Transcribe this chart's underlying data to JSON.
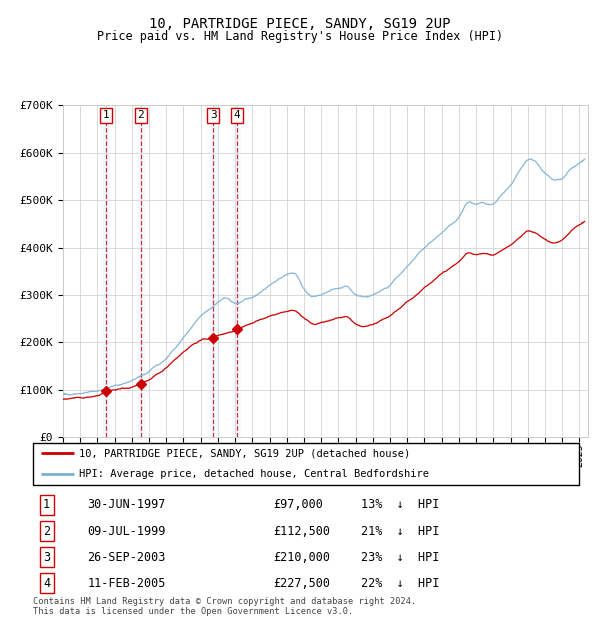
{
  "title": "10, PARTRIDGE PIECE, SANDY, SG19 2UP",
  "subtitle": "Price paid vs. HM Land Registry's House Price Index (HPI)",
  "legend_red": "10, PARTRIDGE PIECE, SANDY, SG19 2UP (detached house)",
  "legend_blue": "HPI: Average price, detached house, Central Bedfordshire",
  "footer": "Contains HM Land Registry data © Crown copyright and database right 2024.\nThis data is licensed under the Open Government Licence v3.0.",
  "transactions": [
    {
      "num": 1,
      "date": "30-JUN-1997",
      "price": 97000,
      "pct": "13%",
      "year": 1997.49
    },
    {
      "num": 2,
      "date": "09-JUL-1999",
      "price": 112500,
      "pct": "21%",
      "year": 1999.52
    },
    {
      "num": 3,
      "date": "26-SEP-2003",
      "price": 210000,
      "pct": "23%",
      "year": 2003.73
    },
    {
      "num": 4,
      "date": "11-FEB-2005",
      "price": 227500,
      "pct": "22%",
      "year": 2005.12
    }
  ],
  "ylim": [
    0,
    700000
  ],
  "yticks": [
    0,
    100000,
    200000,
    300000,
    400000,
    500000,
    600000,
    700000
  ],
  "ytick_labels": [
    "£0",
    "£100K",
    "£200K",
    "£300K",
    "£400K",
    "£500K",
    "£600K",
    "£700K"
  ],
  "xlim_start": 1995.0,
  "xlim_end": 2025.5,
  "red_color": "#cc0000",
  "blue_color": "#7bafd4",
  "highlight_color": "#ddeeff",
  "grid_color": "#cccccc",
  "background_color": "#ffffff",
  "hpi_keypoints": [
    [
      1995.0,
      90000
    ],
    [
      1996.0,
      93000
    ],
    [
      1997.0,
      97000
    ],
    [
      1998.0,
      108000
    ],
    [
      1999.0,
      118000
    ],
    [
      2000.0,
      138000
    ],
    [
      2001.0,
      165000
    ],
    [
      2002.0,
      210000
    ],
    [
      2003.0,
      255000
    ],
    [
      2004.0,
      285000
    ],
    [
      2004.5,
      295000
    ],
    [
      2005.0,
      280000
    ],
    [
      2006.0,
      295000
    ],
    [
      2007.0,
      320000
    ],
    [
      2008.0,
      345000
    ],
    [
      2008.5,
      350000
    ],
    [
      2009.0,
      310000
    ],
    [
      2009.5,
      295000
    ],
    [
      2010.0,
      300000
    ],
    [
      2011.0,
      315000
    ],
    [
      2011.5,
      320000
    ],
    [
      2012.0,
      300000
    ],
    [
      2012.5,
      295000
    ],
    [
      2013.0,
      300000
    ],
    [
      2014.0,
      320000
    ],
    [
      2015.0,
      360000
    ],
    [
      2016.0,
      400000
    ],
    [
      2017.0,
      430000
    ],
    [
      2018.0,
      460000
    ],
    [
      2018.5,
      500000
    ],
    [
      2019.0,
      490000
    ],
    [
      2019.5,
      495000
    ],
    [
      2020.0,
      490000
    ],
    [
      2021.0,
      530000
    ],
    [
      2021.5,
      560000
    ],
    [
      2022.0,
      590000
    ],
    [
      2022.5,
      580000
    ],
    [
      2023.0,
      555000
    ],
    [
      2023.5,
      540000
    ],
    [
      2024.0,
      545000
    ],
    [
      2024.5,
      565000
    ],
    [
      2025.0,
      580000
    ],
    [
      2025.3,
      585000
    ]
  ],
  "red_keypoints": [
    [
      1995.0,
      80000
    ],
    [
      1996.0,
      83000
    ],
    [
      1997.0,
      86000
    ],
    [
      1997.49,
      97000
    ],
    [
      1998.0,
      100000
    ],
    [
      1999.0,
      106000
    ],
    [
      1999.52,
      112500
    ],
    [
      2000.0,
      120000
    ],
    [
      2001.0,
      145000
    ],
    [
      2002.0,
      180000
    ],
    [
      2003.0,
      205000
    ],
    [
      2003.73,
      210000
    ],
    [
      2004.0,
      215000
    ],
    [
      2004.5,
      220000
    ],
    [
      2005.0,
      225000
    ],
    [
      2005.12,
      227500
    ],
    [
      2006.0,
      240000
    ],
    [
      2007.0,
      255000
    ],
    [
      2008.0,
      265000
    ],
    [
      2008.5,
      268000
    ],
    [
      2009.0,
      250000
    ],
    [
      2009.5,
      238000
    ],
    [
      2010.0,
      242000
    ],
    [
      2011.0,
      252000
    ],
    [
      2011.5,
      255000
    ],
    [
      2012.0,
      238000
    ],
    [
      2012.5,
      232000
    ],
    [
      2013.0,
      238000
    ],
    [
      2014.0,
      255000
    ],
    [
      2015.0,
      285000
    ],
    [
      2016.0,
      315000
    ],
    [
      2017.0,
      345000
    ],
    [
      2018.0,
      370000
    ],
    [
      2018.5,
      390000
    ],
    [
      2019.0,
      385000
    ],
    [
      2019.5,
      388000
    ],
    [
      2020.0,
      383000
    ],
    [
      2021.0,
      405000
    ],
    [
      2021.5,
      420000
    ],
    [
      2022.0,
      438000
    ],
    [
      2022.5,
      430000
    ],
    [
      2023.0,
      415000
    ],
    [
      2023.5,
      408000
    ],
    [
      2024.0,
      415000
    ],
    [
      2024.5,
      435000
    ],
    [
      2025.0,
      450000
    ],
    [
      2025.3,
      455000
    ]
  ]
}
